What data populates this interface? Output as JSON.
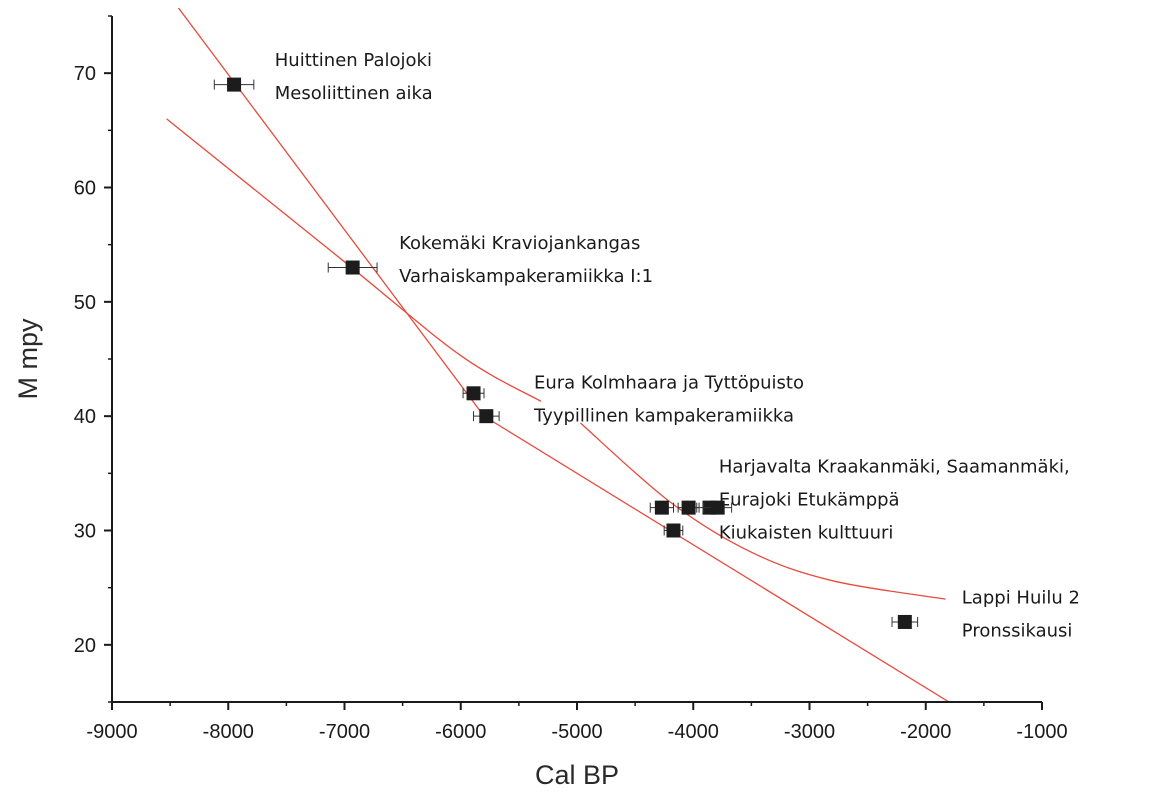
{
  "chart_data": {
    "type": "scatter",
    "title": "",
    "xlabel": "Cal BP",
    "ylabel": "M mpy",
    "xlim": [
      -9000,
      -1000
    ],
    "ylim": [
      15,
      75
    ],
    "xticks": [
      -9000,
      -8000,
      -7000,
      -6000,
      -5000,
      -4000,
      -3000,
      -2000,
      -1000
    ],
    "yticks": [
      20,
      30,
      40,
      50,
      60,
      70
    ],
    "xtick_labels": [
      "-9000",
      "-8000",
      "-7000",
      "-6000",
      "-5000",
      "-4000",
      "-3000",
      "-2000",
      "-1000"
    ],
    "ytick_labels": [
      "20",
      "30",
      "40",
      "50",
      "60",
      "70"
    ],
    "grid": false,
    "colors": {
      "points": "#1c1c1c",
      "fit": "#e84a3c",
      "axis": "#1a1a1a"
    },
    "points": [
      {
        "x": -7950,
        "y": 69,
        "xerr": 170
      },
      {
        "x": -6930,
        "y": 53,
        "xerr": 210
      },
      {
        "x": -5890,
        "y": 42,
        "xerr": 90
      },
      {
        "x": -5780,
        "y": 40,
        "xerr": 110
      },
      {
        "x": -4270,
        "y": 32,
        "xerr": 100
      },
      {
        "x": -4040,
        "y": 32,
        "xerr": 90
      },
      {
        "x": -3860,
        "y": 32,
        "xerr": 110
      },
      {
        "x": -3790,
        "y": 32,
        "xerr": 120
      },
      {
        "x": -4170,
        "y": 30,
        "xerr": 80
      },
      {
        "x": -2180,
        "y": 22,
        "xerr": 110
      }
    ],
    "fit_lines": [
      {
        "kind": "linear",
        "points": [
          [
            -8450,
            76
          ],
          [
            -5800,
            40
          ],
          [
            -1800,
            15
          ]
        ]
      },
      {
        "kind": "curve",
        "points": [
          [
            -8530,
            66
          ],
          [
            -7000,
            53.5
          ],
          [
            -6000,
            45.3
          ],
          [
            -5310,
            41.3
          ]
        ]
      },
      {
        "kind": "curve",
        "points": [
          [
            -4970,
            39.4
          ],
          [
            -4200,
            32.5
          ],
          [
            -3500,
            28.1
          ],
          [
            -2800,
            25.6
          ],
          [
            -1830,
            24
          ]
        ]
      }
    ],
    "annotations": [
      {
        "lines": [
          "Huittinen Palojoki",
          "Mesoliittinen aika"
        ],
        "x": -7600,
        "y": 69
      },
      {
        "lines": [
          "Kokemäki Kraviojankangas",
          "Varhaiskampakeramiikka I:1"
        ],
        "x": -6530,
        "y": 53
      },
      {
        "lines": [
          "Eura Kolmhaara ja Tyttöpuisto",
          "Tyypillinen kampakeramiikka"
        ],
        "x": -5370,
        "y": 40.8
      },
      {
        "lines": [
          "Harjavalta Kraakanmäki, Saamanmäki,",
          "Eurajoki Etukämppä",
          "Kiukaisten kulttuuri"
        ],
        "x": -3780,
        "y": 32
      },
      {
        "lines": [
          "Lappi Huilu 2",
          "Pronssikausi"
        ],
        "x": -1690,
        "y": 22
      }
    ]
  }
}
